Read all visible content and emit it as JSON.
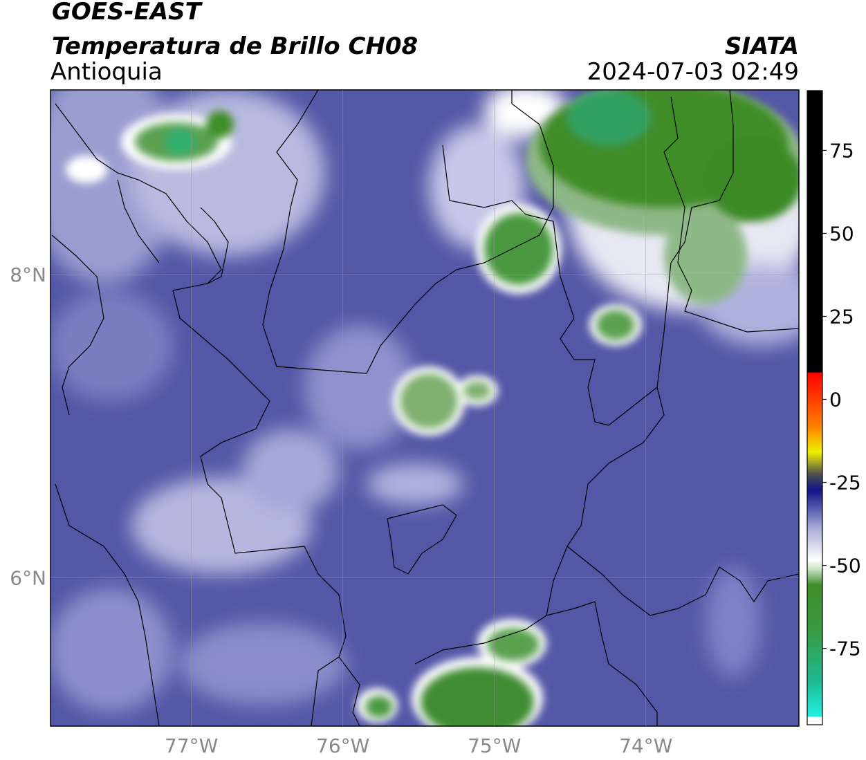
{
  "header": {
    "title": "GOES-EAST",
    "subtitle": "Temperatura de Brillo CH08",
    "region": "Antioquia",
    "source": "SIATA",
    "datetime": "2024-07-03 02:49"
  },
  "map": {
    "lonlim": [
      -77.93,
      -72.99
    ],
    "latlim": [
      5.02,
      9.22
    ],
    "lonticks": [
      {
        "value": -77,
        "label": "77°W"
      },
      {
        "value": -76,
        "label": "76°W"
      },
      {
        "value": -75,
        "label": "75°W"
      },
      {
        "value": -74,
        "label": "74°W"
      }
    ],
    "latticks": [
      {
        "value": 8,
        "label": "8°N"
      },
      {
        "value": 6,
        "label": "6°N"
      }
    ]
  },
  "colorbar": {
    "range": [
      -98,
      93
    ],
    "ticks": [
      75,
      50,
      25,
      0,
      -25,
      -50,
      -75
    ]
  }
}
